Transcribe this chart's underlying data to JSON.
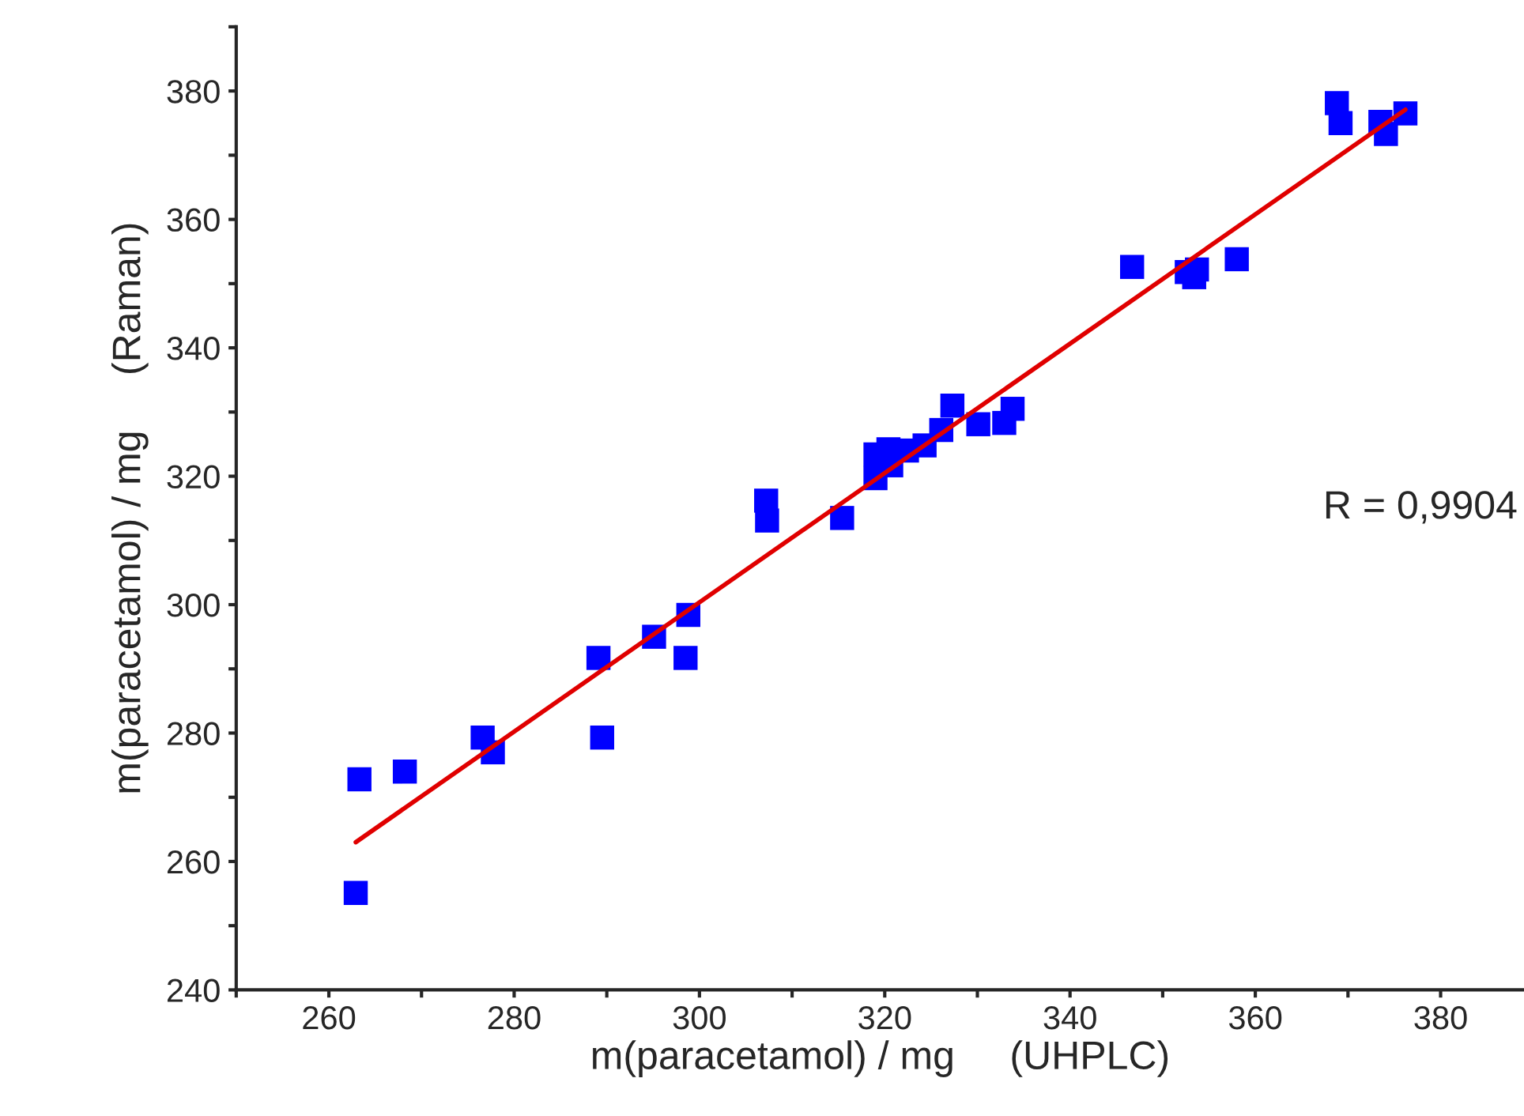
{
  "chart_data": {
    "type": "scatter",
    "xlabel": "m(paracetamol) / mg     (UHPLC)",
    "ylabel": "m(paracetamol) / mg     (Raman)",
    "annotations": [
      "R = 0,9904"
    ],
    "xlim": [
      250,
      389
    ],
    "ylim": [
      240,
      390
    ],
    "xticks": [
      {
        "value": 250,
        "label": null
      },
      260,
      {
        "value": 270,
        "label": null
      },
      280,
      {
        "value": 290,
        "label": null
      },
      300,
      {
        "value": 310,
        "label": null
      },
      320,
      {
        "value": 330,
        "label": null
      },
      340,
      {
        "value": 350,
        "label": null
      },
      360,
      {
        "value": 370,
        "label": null
      },
      380
    ],
    "yticks": [
      240,
      {
        "value": 250,
        "label": null
      },
      260,
      {
        "value": 270,
        "label": null
      },
      280,
      {
        "value": 290,
        "label": null
      },
      300,
      {
        "value": 310,
        "label": null
      },
      320,
      {
        "value": 330,
        "label": null
      },
      340,
      {
        "value": 350,
        "label": null
      },
      360,
      {
        "value": 370,
        "label": null
      },
      380,
      {
        "value": 390,
        "label": null
      }
    ],
    "grid": false,
    "legend": false,
    "series": [
      {
        "type": "line",
        "color": "#e00000",
        "marker": "none",
        "line_style": "solid",
        "x": [
          262.9,
          376.2
        ],
        "values": [
          263.0,
          377.1
        ]
      },
      {
        "color": "#0000ff",
        "marker": "square",
        "x": [
          263.3,
          262.9,
          268.2,
          276.6,
          277.7,
          289.1,
          289.5,
          295.1,
          298.8,
          298.5,
          307.2,
          307.3,
          315.4,
          319.0,
          319.0,
          320.4,
          320.7,
          322.4,
          324.3,
          326.1,
          327.3,
          330.1,
          332.9,
          333.8,
          346.7,
          352.6,
          353.7,
          353.4,
          358.0,
          368.8,
          369.2,
          373.5,
          374.1,
          376.2
        ],
        "values": [
          272.8,
          255.1,
          274.0,
          279.3,
          277.0,
          291.7,
          279.3,
          295.0,
          298.4,
          291.7,
          316.2,
          313.1,
          313.5,
          319.7,
          323.4,
          324.2,
          321.7,
          324.0,
          324.8,
          327.2,
          331.0,
          328.1,
          328.3,
          330.5,
          352.6,
          351.8,
          352.2,
          351.0,
          353.8,
          378.1,
          375.0,
          375.2,
          373.3,
          376.5
        ]
      }
    ]
  }
}
